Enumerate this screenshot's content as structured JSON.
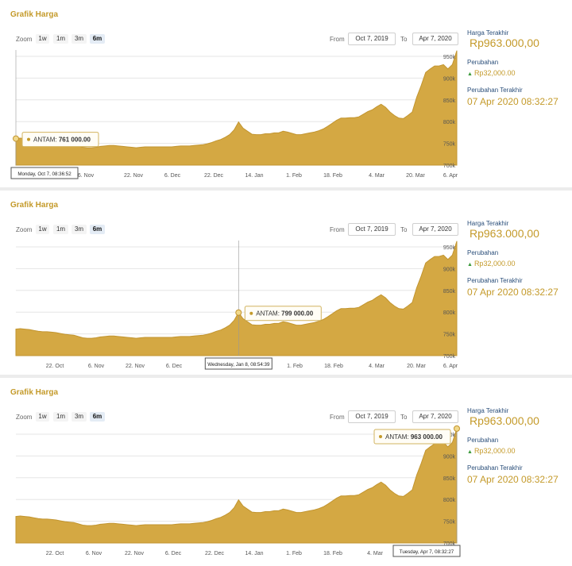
{
  "panels": [
    {
      "title": "Grafik Harga",
      "zoom": {
        "label": "Zoom",
        "options": [
          "1w",
          "1m",
          "3m",
          "6m"
        ],
        "active": "6m"
      },
      "range": {
        "from_label": "From",
        "from": "Oct 7, 2019",
        "to_label": "To",
        "to": "Apr 7, 2020"
      },
      "tooltip": {
        "series": "ANTAM",
        "value": "761 000.00",
        "date_label": "Monday, Oct 7, 08:36:52",
        "index": 0
      },
      "x_labels": [
        "6. Nov",
        "22. Nov",
        "6. Dec",
        "22. Dec",
        "14. Jan",
        "1. Feb",
        "18. Feb",
        "4. Mar",
        "20. Mar",
        "6. Apr"
      ],
      "side": {
        "last_price_label": "Harga Terakhir",
        "last_price": "Rp963.000,00",
        "change_label": "Perubahan",
        "change": "Rp32,000.00",
        "updated_label": "Perubahan Terakhir",
        "updated": "07 Apr 2020 08:32:27"
      }
    },
    {
      "title": "Grafik Harga",
      "zoom": {
        "label": "Zoom",
        "options": [
          "1w",
          "1m",
          "3m",
          "6m"
        ],
        "active": "6m"
      },
      "range": {
        "from_label": "From",
        "from": "Oct 7, 2019",
        "to_label": "To",
        "to": "Apr 7, 2020"
      },
      "tooltip": {
        "series": "ANTAM",
        "value": "799 000.00",
        "date_label": "Wednesday, Jan 8, 08:54:39",
        "index": 50
      },
      "x_labels": [
        "22. Oct",
        "6. Nov",
        "22. Nov",
        "6. Dec",
        "1. Feb",
        "18. Feb",
        "4. Mar",
        "20. Mar",
        "6. Apr"
      ],
      "side": {
        "last_price_label": "Harga Terakhir",
        "last_price": "Rp963.000,00",
        "change_label": "Perubahan",
        "change": "Rp32,000.00",
        "updated_label": "Perubahan Terakhir",
        "updated": "07 Apr 2020 08:32:27"
      }
    },
    {
      "title": "Grafik Harga",
      "zoom": {
        "label": "Zoom",
        "options": [
          "1w",
          "1m",
          "3m",
          "6m"
        ],
        "active": "6m"
      },
      "range": {
        "from_label": "From",
        "from": "Oct 7, 2019",
        "to_label": "To",
        "to": "Apr 7, 2020"
      },
      "tooltip": {
        "series": "ANTAM",
        "value": "963 000.00",
        "date_label": "Tuesday, Apr 7, 08:32:27",
        "index": 99
      },
      "x_labels": [
        "22. Oct",
        "6. Nov",
        "22. Nov",
        "6. Dec",
        "22. Dec",
        "14. Jan",
        "1. Feb",
        "18. Feb",
        "4. Mar"
      ],
      "side": {
        "last_price_label": "Harga Terakhir",
        "last_price": "Rp963.000,00",
        "change_label": "Perubahan",
        "change": "Rp32,000.00",
        "updated_label": "Perubahan Terakhir",
        "updated": "07 Apr 2020 08:32:27"
      }
    }
  ],
  "chart_data": {
    "type": "area",
    "series": [
      {
        "name": "ANTAM",
        "values": [
          761000,
          762000,
          761000,
          760000,
          758000,
          756000,
          755000,
          755000,
          754000,
          753000,
          751000,
          749000,
          748000,
          747000,
          744000,
          741000,
          740000,
          740000,
          741000,
          743000,
          744000,
          745000,
          745000,
          744000,
          743000,
          742000,
          741000,
          740000,
          741000,
          742000,
          742000,
          742000,
          742000,
          742000,
          742000,
          742000,
          743000,
          744000,
          744000,
          744000,
          745000,
          746000,
          747000,
          749000,
          752000,
          756000,
          759000,
          764000,
          770000,
          781000,
          799000,
          785000,
          778000,
          771000,
          770000,
          770000,
          772000,
          772000,
          774000,
          774000,
          778000,
          776000,
          773000,
          770000,
          770000,
          772000,
          774000,
          776000,
          779000,
          783000,
          789000,
          796000,
          803000,
          808000,
          808000,
          809000,
          809000,
          811000,
          817000,
          823000,
          827000,
          834000,
          840000,
          833000,
          822000,
          814000,
          808000,
          807000,
          814000,
          822000,
          856000,
          883000,
          913000,
          921000,
          928000,
          928000,
          931000,
          921000,
          931000,
          963000
        ]
      }
    ],
    "x_range": [
      "Oct 7, 2019",
      "Apr 7, 2020"
    ],
    "y_ticks": [
      "700k",
      "750k",
      "800k",
      "850k",
      "900k",
      "950k"
    ],
    "ylim": [
      700000,
      950000
    ],
    "legend": "none",
    "grid": true,
    "color": "#d4a843"
  },
  "colors": {
    "accent": "#c49a2a",
    "area": "#d4a843",
    "label": "#2b4f7a",
    "up": "#3a9a3a"
  }
}
